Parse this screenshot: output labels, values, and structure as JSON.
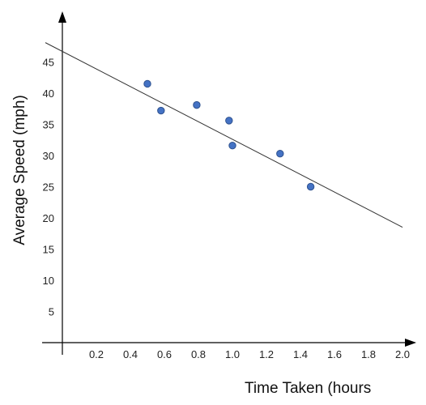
{
  "chart_data": {
    "type": "scatter",
    "title": "",
    "xlabel": "Time Taken (hours",
    "ylabel": "Average Speed (mph)",
    "x_tick_labels": [
      "0.2",
      "0.4",
      "0.6",
      "0.8",
      "1.0",
      "1.2",
      "1.4",
      "1.6",
      "1.8",
      "2.0"
    ],
    "x_tick_values": [
      0.2,
      0.4,
      0.6,
      0.8,
      1.0,
      1.2,
      1.4,
      1.6,
      1.8,
      2.0
    ],
    "y_tick_labels": [
      "5",
      "10",
      "15",
      "20",
      "25",
      "30",
      "35",
      "40",
      "45"
    ],
    "y_tick_values": [
      5,
      10,
      15,
      20,
      25,
      30,
      35,
      40,
      45
    ],
    "xlim": [
      0,
      2.1
    ],
    "ylim": [
      0,
      52
    ],
    "grid": false,
    "legend": "none",
    "series": [
      {
        "points": [
          {
            "x": 0.5,
            "y": 41.5
          },
          {
            "x": 0.58,
            "y": 37.2
          },
          {
            "x": 0.79,
            "y": 38.1
          },
          {
            "x": 0.98,
            "y": 35.6
          },
          {
            "x": 1.0,
            "y": 31.6
          },
          {
            "x": 1.28,
            "y": 30.3
          },
          {
            "x": 1.46,
            "y": 25.0
          }
        ]
      }
    ],
    "trend_line": {
      "x": [
        -0.1,
        2.0
      ],
      "y": [
        48.1,
        18.5
      ]
    },
    "colors": {
      "point_fill": "#4472c4",
      "point_stroke": "#2f528f",
      "line": "#333333",
      "axis": "#000000"
    }
  }
}
